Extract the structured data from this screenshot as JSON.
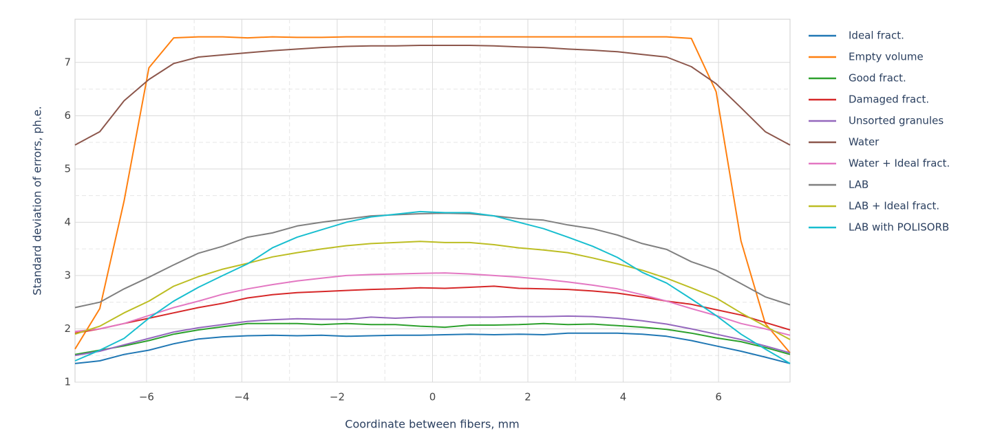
{
  "chart_data": {
    "type": "line",
    "xlabel": "Coordinate between fibers, mm",
    "ylabel": "Standard deviation of errors, ph.e.",
    "x": [
      -7.5,
      -6.98,
      -6.47,
      -5.95,
      -5.43,
      -4.91,
      -4.4,
      -3.88,
      -3.36,
      -2.84,
      -2.33,
      -1.81,
      -1.29,
      -0.78,
      -0.26,
      0.26,
      0.78,
      1.29,
      1.81,
      2.33,
      2.84,
      3.36,
      3.88,
      4.4,
      4.91,
      5.43,
      5.95,
      6.47,
      6.98,
      7.5
    ],
    "xlim": [
      -7.5,
      7.5
    ],
    "xticks": [
      {
        "value": -6,
        "label": "−6"
      },
      {
        "value": -4,
        "label": "−4"
      },
      {
        "value": -2,
        "label": "−2"
      },
      0,
      2,
      4,
      6
    ],
    "ylim": [
      1,
      7.81
    ],
    "yticks": [
      1,
      2,
      3,
      4,
      5,
      6,
      7
    ],
    "grid": true,
    "series": [
      {
        "name": "Ideal fract.",
        "color": "#1f77b4",
        "values": [
          1.35,
          1.4,
          1.52,
          1.6,
          1.72,
          1.81,
          1.85,
          1.87,
          1.88,
          1.87,
          1.88,
          1.86,
          1.87,
          1.88,
          1.88,
          1.89,
          1.9,
          1.89,
          1.9,
          1.89,
          1.92,
          1.92,
          1.92,
          1.9,
          1.86,
          1.78,
          1.68,
          1.58,
          1.47,
          1.35
        ]
      },
      {
        "name": "Empty volume",
        "color": "#ff7f0e",
        "values": [
          1.62,
          2.38,
          4.4,
          6.9,
          7.46,
          7.48,
          7.48,
          7.46,
          7.48,
          7.47,
          7.47,
          7.48,
          7.48,
          7.48,
          7.48,
          7.48,
          7.48,
          7.48,
          7.48,
          7.48,
          7.48,
          7.48,
          7.48,
          7.48,
          7.48,
          7.45,
          6.45,
          3.65,
          2.1,
          1.55
        ]
      },
      {
        "name": "Good fract.",
        "color": "#2ca02c",
        "values": [
          1.52,
          1.6,
          1.68,
          1.78,
          1.9,
          1.98,
          2.04,
          2.1,
          2.1,
          2.1,
          2.08,
          2.1,
          2.08,
          2.08,
          2.05,
          2.03,
          2.07,
          2.07,
          2.08,
          2.1,
          2.08,
          2.09,
          2.06,
          2.03,
          1.99,
          1.92,
          1.83,
          1.76,
          1.65,
          1.52
        ]
      },
      {
        "name": "Damaged fract.",
        "color": "#d62728",
        "values": [
          1.92,
          2.0,
          2.1,
          2.2,
          2.3,
          2.4,
          2.48,
          2.58,
          2.64,
          2.68,
          2.7,
          2.72,
          2.74,
          2.75,
          2.77,
          2.76,
          2.78,
          2.8,
          2.76,
          2.75,
          2.74,
          2.71,
          2.67,
          2.6,
          2.52,
          2.46,
          2.36,
          2.26,
          2.12,
          1.98
        ]
      },
      {
        "name": "Unsorted granules",
        "color": "#9467bd",
        "values": [
          1.5,
          1.58,
          1.7,
          1.82,
          1.94,
          2.02,
          2.08,
          2.14,
          2.17,
          2.19,
          2.18,
          2.18,
          2.22,
          2.2,
          2.22,
          2.22,
          2.22,
          2.22,
          2.23,
          2.23,
          2.24,
          2.23,
          2.2,
          2.15,
          2.09,
          2.0,
          1.9,
          1.8,
          1.68,
          1.55
        ]
      },
      {
        "name": "Water",
        "color": "#8c564b",
        "values": [
          5.45,
          5.7,
          6.28,
          6.68,
          6.98,
          7.1,
          7.14,
          7.18,
          7.22,
          7.25,
          7.28,
          7.3,
          7.31,
          7.31,
          7.32,
          7.32,
          7.32,
          7.31,
          7.29,
          7.28,
          7.25,
          7.23,
          7.2,
          7.15,
          7.1,
          6.92,
          6.6,
          6.15,
          5.7,
          5.45
        ]
      },
      {
        "name": "Water + Ideal fract.",
        "color": "#e377c2",
        "values": [
          1.95,
          2.0,
          2.1,
          2.25,
          2.4,
          2.52,
          2.65,
          2.75,
          2.83,
          2.9,
          2.95,
          3.0,
          3.02,
          3.03,
          3.04,
          3.05,
          3.03,
          3.0,
          2.97,
          2.93,
          2.88,
          2.82,
          2.75,
          2.64,
          2.52,
          2.38,
          2.25,
          2.1,
          2.0,
          1.88
        ]
      },
      {
        "name": "LAB",
        "color": "#7f7f7f",
        "values": [
          2.4,
          2.5,
          2.75,
          2.97,
          3.2,
          3.42,
          3.55,
          3.72,
          3.8,
          3.93,
          4.0,
          4.06,
          4.12,
          4.14,
          4.16,
          4.17,
          4.16,
          4.12,
          4.07,
          4.04,
          3.95,
          3.88,
          3.76,
          3.6,
          3.49,
          3.26,
          3.1,
          2.85,
          2.6,
          2.45
        ]
      },
      {
        "name": "LAB + Ideal fract.",
        "color": "#bcbd22",
        "values": [
          1.9,
          2.05,
          2.3,
          2.52,
          2.8,
          2.98,
          3.12,
          3.23,
          3.35,
          3.43,
          3.5,
          3.56,
          3.6,
          3.62,
          3.64,
          3.62,
          3.62,
          3.58,
          3.52,
          3.48,
          3.43,
          3.33,
          3.22,
          3.1,
          2.95,
          2.77,
          2.58,
          2.3,
          2.05,
          1.8
        ]
      },
      {
        "name": "LAB with POLISORB",
        "color": "#17becf",
        "values": [
          1.4,
          1.6,
          1.82,
          2.2,
          2.52,
          2.78,
          3.0,
          3.22,
          3.52,
          3.72,
          3.86,
          4.0,
          4.1,
          4.15,
          4.2,
          4.18,
          4.18,
          4.12,
          4.0,
          3.88,
          3.72,
          3.55,
          3.34,
          3.06,
          2.86,
          2.56,
          2.25,
          1.9,
          1.62,
          1.35
        ]
      }
    ]
  }
}
